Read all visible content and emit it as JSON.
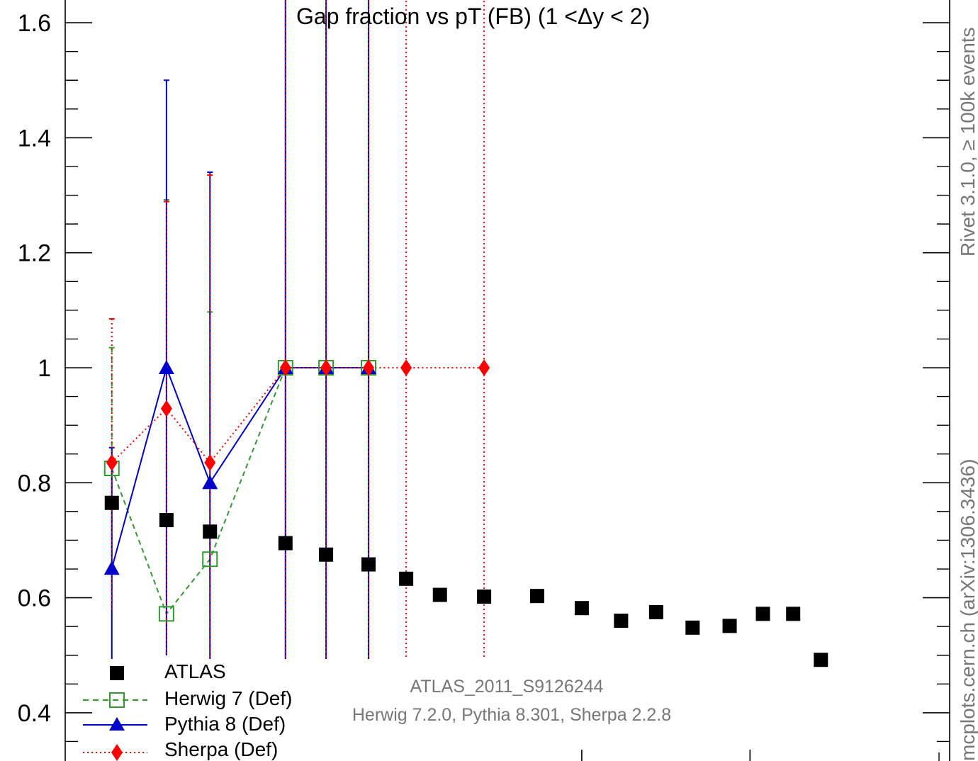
{
  "chart_data": {
    "type": "scatter",
    "title": "Gap fraction vs pT (FB) (1 <Δy < 2)",
    "xlabel": "",
    "ylabel": "",
    "ylim": [
      0.33,
      1.66
    ],
    "y_ticks": [
      "0.4",
      "0.6",
      "0.8",
      "1",
      "1.2",
      "1.4",
      "1.6"
    ],
    "x_tick_label_values": [],
    "series": [
      {
        "name": "ATLAS",
        "marker": "square",
        "color": "#000000",
        "line": "none",
        "points": [
          {
            "x": 72,
            "y": 0.765
          },
          {
            "x": 85,
            "y": 0.735
          },
          {
            "x": 97,
            "y": 0.715
          },
          {
            "x": 122,
            "y": 0.695
          },
          {
            "x": 138,
            "y": 0.675
          },
          {
            "x": 157,
            "y": 0.658
          },
          {
            "x": 176,
            "y": 0.633
          },
          {
            "x": 195,
            "y": 0.605
          },
          {
            "x": 223,
            "y": 0.602
          },
          {
            "x": 262,
            "y": 0.603
          },
          {
            "x": 300,
            "y": 0.582
          },
          {
            "x": 338,
            "y": 0.56
          },
          {
            "x": 376,
            "y": 0.575
          },
          {
            "x": 420,
            "y": 0.548
          },
          {
            "x": 470,
            "y": 0.551
          },
          {
            "x": 520,
            "y": 0.572
          },
          {
            "x": 570,
            "y": 0.572
          },
          {
            "x": 620,
            "y": 0.492
          }
        ]
      },
      {
        "name": "Herwig 7 (Def)",
        "marker": "open-square",
        "color": "#339933",
        "line": "dashed",
        "points": [
          {
            "x": 72,
            "y": 0.825,
            "err_lo": 0.21,
            "err_hi": 0.21
          },
          {
            "x": 85,
            "y": 0.572,
            "err_lo": 0.08,
            "err_hi": 0.72
          },
          {
            "x": 97,
            "y": 0.667,
            "err_lo": 0.18,
            "err_hi": 0.43
          },
          {
            "x": 122,
            "y": 1.0,
            "err_lo": 0.7,
            "err_hi": 0.7
          },
          {
            "x": 138,
            "y": 1.0,
            "err_lo": 0.7,
            "err_hi": 0.7
          },
          {
            "x": 157,
            "y": 1.0,
            "err_lo": 0.7,
            "err_hi": 0.7
          }
        ]
      },
      {
        "name": "Pythia 8 (Def)",
        "marker": "triangle",
        "color": "#0000cc",
        "line": "solid",
        "points": [
          {
            "x": 72,
            "y": 0.651,
            "err_lo": 0.21,
            "err_hi": 0.21
          },
          {
            "x": 85,
            "y": 1.0,
            "err_lo": 0.5,
            "err_hi": 0.5
          },
          {
            "x": 97,
            "y": 0.8,
            "err_lo": 0.35,
            "err_hi": 0.54
          },
          {
            "x": 122,
            "y": 1.0,
            "err_lo": 0.7,
            "err_hi": 0.7
          },
          {
            "x": 138,
            "y": 1.0,
            "err_lo": 0.7,
            "err_hi": 0.7
          },
          {
            "x": 157,
            "y": 1.0,
            "err_lo": 0.7,
            "err_hi": 0.7
          }
        ]
      },
      {
        "name": "Sherpa (Def)",
        "marker": "diamond",
        "color": "#ff0000",
        "line": "dotted",
        "points": [
          {
            "x": 72,
            "y": 0.835,
            "err_lo": 0.255,
            "err_hi": 0.25
          },
          {
            "x": 85,
            "y": 0.929,
            "err_lo": 0.43,
            "err_hi": 0.36
          },
          {
            "x": 97,
            "y": 0.835,
            "err_lo": 0.35,
            "err_hi": 0.5
          },
          {
            "x": 122,
            "y": 1.0,
            "err_lo": 0.7,
            "err_hi": 0.7
          },
          {
            "x": 138,
            "y": 1.0,
            "err_lo": 0.7,
            "err_hi": 0.7
          },
          {
            "x": 157,
            "y": 1.0,
            "err_lo": 0.7,
            "err_hi": 0.7
          },
          {
            "x": 176,
            "y": 1.0,
            "err_lo": 0.7,
            "err_hi": 0.7
          },
          {
            "x": 223,
            "y": 1.0,
            "err_lo": 0.7,
            "err_hi": 0.7
          }
        ]
      }
    ],
    "legend_position": "bottom-left",
    "grid": false
  },
  "annotations": {
    "analysis_id": "ATLAS_2011_S9126244",
    "generators": "Herwig 7.2.0, Pythia 8.301, Sherpa 2.2.8",
    "side_text_top": "Rivet 3.1.0, ≥ 100k events",
    "side_text_bottom": "mcplots.cern.ch (arXiv:1306.3436)"
  }
}
